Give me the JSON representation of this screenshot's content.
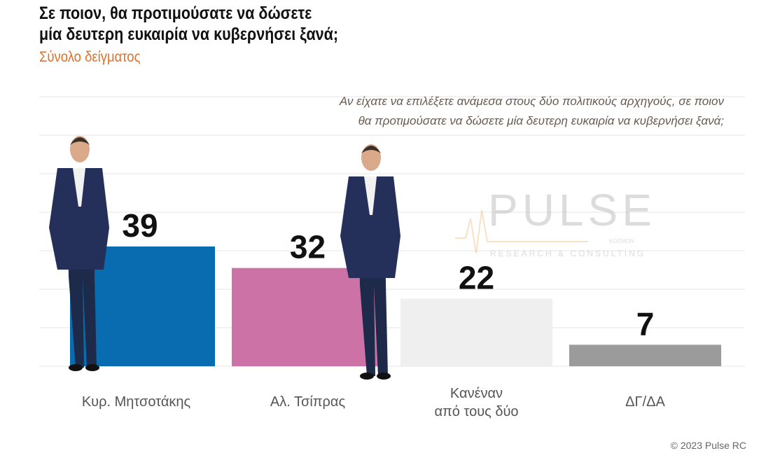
{
  "title_lines": [
    "Σε ποιον, θα προτιμούσατε να δώσετε",
    "μία δευτερη ευκαιρία να κυβερνήσει ξανά;"
  ],
  "subtitle": "Σύνολο δείγματος",
  "credit": "© 2023 Pulse RC",
  "watermark": {
    "brand": "PULSE",
    "tagline": "RESEARCH & CONSULTING",
    "sub": "KOSMON"
  },
  "chart_data": {
    "type": "bar",
    "title": "Σε ποιον, θα προτιμούσατε να δώσετε μία δευτερη ευκαιρία να κυβερνήσει ξανά;",
    "annotation_lines": [
      "Αν είχατε να επιλέξετε ανάμεσα στους δύο πολιτικούς αρχηγούς, σε ποιον",
      "θα προτιμούσατε να δώσετε μία δευτερη ευκαιρία να κυβερνήσει ξανά;"
    ],
    "categories": [
      "Κυρ. Μητσοτάκης",
      "Αλ. Τσίπρας",
      "Κανέναν από τους δύο",
      "ΔΓ/ΔΑ"
    ],
    "category_lines": [
      [
        "Κυρ. Μητσοτάκης"
      ],
      [
        "Αλ. Τσίπρας"
      ],
      [
        "Κανέναν",
        "από τους δύο"
      ],
      [
        "ΔΓ/ΔΑ"
      ]
    ],
    "values": [
      39,
      32,
      22,
      7
    ],
    "data_labels": [
      "39",
      "32",
      "22",
      "7"
    ],
    "colors": [
      "#0a6cb0",
      "#cc72a6",
      "#efefef",
      "#9b9b9b"
    ],
    "grid": true,
    "ylim": [
      0,
      88
    ],
    "yaxis_visible": false
  }
}
